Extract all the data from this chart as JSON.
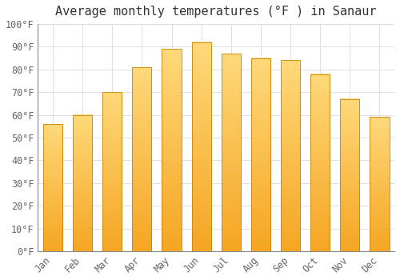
{
  "title": "Average monthly temperatures (°F ) in Sanaur",
  "months": [
    "Jan",
    "Feb",
    "Mar",
    "Apr",
    "May",
    "Jun",
    "Jul",
    "Aug",
    "Sep",
    "Oct",
    "Nov",
    "Dec"
  ],
  "values": [
    56,
    60,
    70,
    81,
    89,
    92,
    87,
    85,
    84,
    78,
    67,
    59
  ],
  "bar_color_bottom": "#F5A623",
  "bar_color_top": "#FFD97A",
  "bar_edge_color": "#C8820A",
  "ylim": [
    0,
    100
  ],
  "yticks": [
    0,
    10,
    20,
    30,
    40,
    50,
    60,
    70,
    80,
    90,
    100
  ],
  "ytick_labels": [
    "0°F",
    "10°F",
    "20°F",
    "30°F",
    "40°F",
    "50°F",
    "60°F",
    "70°F",
    "80°F",
    "90°F",
    "100°F"
  ],
  "background_color": "#FFFFFF",
  "grid_color": "#E0E0E0",
  "title_fontsize": 11,
  "tick_fontsize": 8.5,
  "bar_width": 0.65
}
